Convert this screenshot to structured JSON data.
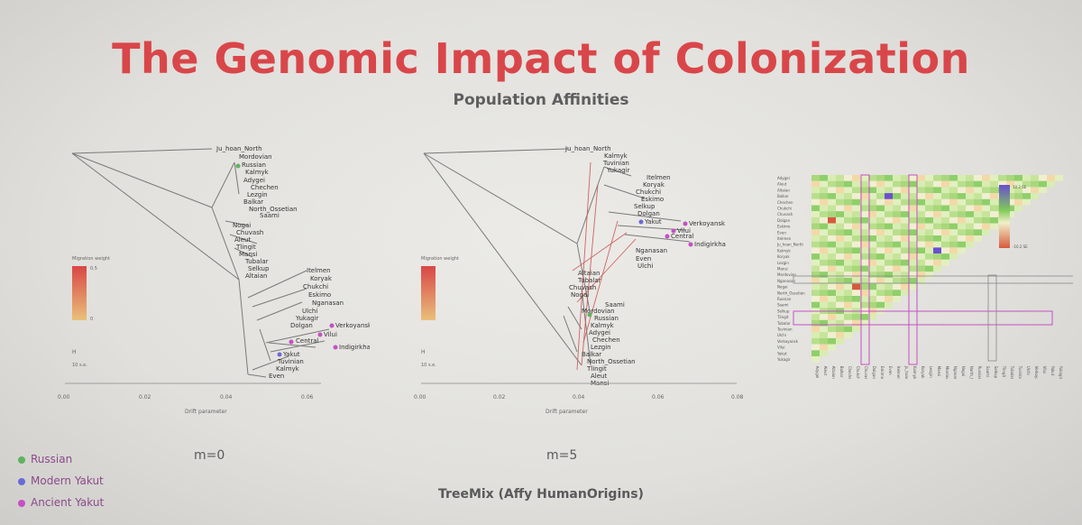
{
  "slide": {
    "title": "The Genomic Impact of Colonization",
    "subtitle": "Population Affinities",
    "caption": "TreeMix (Affy HumanOrigins)"
  },
  "tree_left": {
    "label": "m=0",
    "x_axis_label": "Drift parameter",
    "ticks": [
      "0.00",
      "0.02",
      "0.04",
      "0.06"
    ],
    "scale_bar_label": "10 s.e.",
    "weight_label": "Migration weight",
    "weight_max": "0.5",
    "weight_min": "0",
    "taxa": [
      "Ju_hoan_North",
      "Mordovian",
      "Russian",
      "Kalmyk",
      "Adygei",
      "Chechen",
      "Lezgin",
      "Balkar",
      "North_Ossetian",
      "Saami",
      "Nogai",
      "Chuvash",
      "Aleut",
      "Tlingit",
      "Mansi",
      "Tubalar",
      "Selkup",
      "Altaian",
      "Itelmen",
      "Koryak",
      "Chukchi",
      "Eskimo",
      "Nganasan",
      "Ulchi",
      "Yukagir",
      "Dolgan",
      "Verkoyansk",
      "Vilui",
      "Central",
      "Indigirkha",
      "Yakut",
      "Tuvinian",
      "Kalmyk",
      "Even"
    ]
  },
  "tree_right": {
    "label": "m=5",
    "x_axis_label": "Drift parameter",
    "ticks": [
      "0.00",
      "0.02",
      "0.04",
      "0.06",
      "0.08"
    ],
    "scale_bar_label": "10 s.e.",
    "weight_label": "Migration weight",
    "taxa": [
      "Ju_hoan_North",
      "Kalmyk",
      "Tuvinian",
      "Yukagir",
      "Itelmen",
      "Koryak",
      "Chukchi",
      "Eskimo",
      "Selkup",
      "Dolgan",
      "Yakut",
      "Verkoyansk",
      "Vilui",
      "Central",
      "Indigirkha",
      "Nganasan",
      "Even",
      "Ulchi",
      "Altaian",
      "Tubalar",
      "Chuvash",
      "Nogai",
      "Saami",
      "Mordovian",
      "Russian",
      "Kalmyk",
      "Adygei",
      "Chechen",
      "Lezgin",
      "Balkar",
      "North_Ossetian",
      "Tlingit",
      "Aleut",
      "Mansi"
    ]
  },
  "legend": [
    {
      "label": "Russian",
      "color": "#5fb35f"
    },
    {
      "label": "Modern Yakut",
      "color": "#6a6ad6"
    },
    {
      "label": "Ancient Yakut",
      "color": "#c64fc6"
    }
  ],
  "heatmap": {
    "rows": [
      "Adygei",
      "Aleut",
      "Altaian",
      "Balkar",
      "Chechen",
      "Chukchi",
      "Chuvash",
      "Dolgan",
      "Eskimo",
      "Even",
      "Itelmen",
      "Ju_hoan_North",
      "Kalmyk",
      "Koryak",
      "Lezgin",
      "Mansi",
      "Mordovian",
      "Nganasan",
      "Nogai",
      "North_Ossetian",
      "Russian",
      "Saami",
      "Selkup",
      "Tlingit",
      "Tubalar",
      "Tuvinian",
      "Ulchi",
      "Verkoyansk",
      "Vilui",
      "Yakut",
      "Yukagir"
    ],
    "scale_max": "10.2 SE",
    "scale_min": "-10.2 SE"
  }
}
